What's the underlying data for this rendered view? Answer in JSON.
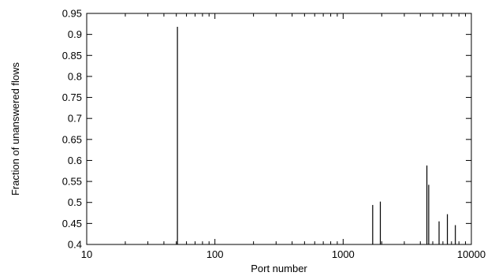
{
  "chart_data": {
    "type": "bar",
    "x_scale": "log",
    "xlabel": "Port number",
    "ylabel": "Fraction of unanswered flows",
    "xlim": [
      10,
      10000
    ],
    "ylim": [
      0.4,
      0.95
    ],
    "x_ticks": [
      {
        "value": 10,
        "label": "10"
      },
      {
        "value": 100,
        "label": "100"
      },
      {
        "value": 1000,
        "label": "1000"
      },
      {
        "value": 10000,
        "label": "10000"
      }
    ],
    "y_ticks": [
      {
        "value": 0.4,
        "label": "0.4"
      },
      {
        "value": 0.45,
        "label": "0.45"
      },
      {
        "value": 0.5,
        "label": "0.5"
      },
      {
        "value": 0.55,
        "label": "0.55"
      },
      {
        "value": 0.6,
        "label": "0.6"
      },
      {
        "value": 0.65,
        "label": "0.65"
      },
      {
        "value": 0.7,
        "label": "0.7"
      },
      {
        "value": 0.75,
        "label": "0.75"
      },
      {
        "value": 0.8,
        "label": "0.8"
      },
      {
        "value": 0.85,
        "label": "0.85"
      },
      {
        "value": 0.9,
        "label": "0.9"
      },
      {
        "value": 0.95,
        "label": "0.95"
      }
    ],
    "grid": false,
    "points": [
      {
        "x": 51,
        "y": 0.918
      },
      {
        "x": 1700,
        "y": 0.494
      },
      {
        "x": 1950,
        "y": 0.502
      },
      {
        "x": 4500,
        "y": 0.588
      },
      {
        "x": 4650,
        "y": 0.542
      },
      {
        "x": 5600,
        "y": 0.455
      },
      {
        "x": 6500,
        "y": 0.472
      },
      {
        "x": 7500,
        "y": 0.446
      }
    ]
  }
}
